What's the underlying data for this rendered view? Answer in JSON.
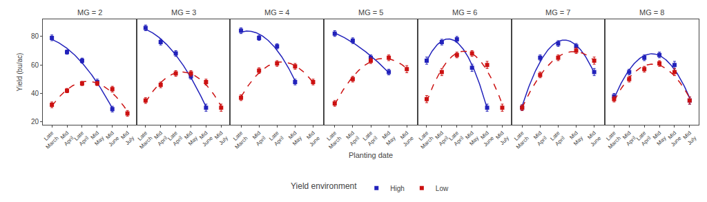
{
  "chart_data": [
    {
      "type": "scatter",
      "title": "MG = 2",
      "ylabel": "Yield (bu/ac)",
      "legend_title": "Yield environment",
      "legend": "bottom",
      "categories": [
        "Late\nMarch",
        "Mid\nApril",
        "Late\nApril",
        "Mid\nMay",
        "Mid\nJune",
        "Mid\nJuly"
      ],
      "ylim": [
        18,
        92
      ],
      "yticks": [
        20,
        40,
        60,
        80
      ],
      "grid": false,
      "series": [
        {
          "name": "High",
          "color": "#2222bb",
          "marker": "square",
          "line_style": "solid",
          "values": [
            79,
            69,
            63,
            48,
            29,
            null
          ],
          "errors": [
            2.0,
            1.5,
            1.8,
            2.0,
            2.0,
            null
          ]
        },
        {
          "name": "Low",
          "color": "#cc1111",
          "marker": "square",
          "line_style": "dashed",
          "values": [
            32,
            42,
            47,
            47,
            43,
            26
          ],
          "errors": [
            2.0,
            1.5,
            1.5,
            1.5,
            2.0,
            2.0
          ]
        }
      ]
    },
    {
      "type": "scatter",
      "title": "MG = 3",
      "tick_labels": "x",
      "categories": [
        "Late\nMarch",
        "Mid\nApril",
        "Late\nApril",
        "Mid\nMay",
        "Mid\nJune",
        "Mid\nJuly"
      ],
      "ylim": [
        18,
        92
      ],
      "yticks": [
        20,
        40,
        60,
        80
      ],
      "grid": false,
      "series": [
        {
          "name": "High",
          "color": "#2222bb",
          "marker": "square",
          "line_style": "solid",
          "values": [
            86,
            76,
            68,
            52,
            30,
            null
          ],
          "errors": [
            2.0,
            2.0,
            2.0,
            2.0,
            2.5,
            null
          ]
        },
        {
          "name": "Low",
          "color": "#cc1111",
          "marker": "square",
          "line_style": "dashed",
          "values": [
            35,
            46,
            54,
            54,
            48,
            30
          ],
          "errors": [
            2.0,
            2.0,
            2.0,
            2.0,
            2.0,
            2.5
          ]
        }
      ]
    },
    {
      "type": "scatter",
      "title": "MG = 4",
      "tick_labels": "x",
      "categories": [
        "Late\nMarch",
        "Mid\nApril",
        "Late\nApril",
        "Mid\nMay",
        "Mid\nJune"
      ],
      "ylim": [
        18,
        92
      ],
      "yticks": [
        20,
        40,
        60,
        80
      ],
      "grid": false,
      "series": [
        {
          "name": "High",
          "color": "#2222bb",
          "marker": "square",
          "line_style": "solid",
          "values": [
            84,
            79,
            73,
            48,
            null
          ],
          "errors": [
            2.0,
            1.8,
            1.8,
            2.0,
            null
          ]
        },
        {
          "name": "Low",
          "color": "#cc1111",
          "marker": "square",
          "line_style": "dashed",
          "values": [
            37,
            56,
            61,
            59,
            48
          ],
          "errors": [
            2.0,
            2.0,
            2.0,
            2.0,
            2.0
          ]
        }
      ]
    },
    {
      "type": "scatter",
      "title": "MG = 5",
      "xlabel": "Planting date",
      "tick_labels": "x",
      "categories": [
        "Late\nMarch",
        "Mid\nApril",
        "Late\nApril",
        "Mid\nMay",
        "Mid\nJune"
      ],
      "ylim": [
        18,
        92
      ],
      "yticks": [
        20,
        40,
        60,
        80
      ],
      "grid": false,
      "series": [
        {
          "name": "High",
          "color": "#2222bb",
          "marker": "square",
          "line_style": "solid",
          "values": [
            82,
            77,
            65,
            55,
            null
          ],
          "errors": [
            2.0,
            2.0,
            2.0,
            2.0,
            null
          ]
        },
        {
          "name": "Low",
          "color": "#cc1111",
          "marker": "square",
          "line_style": "dashed",
          "values": [
            33,
            50,
            63,
            65,
            57
          ],
          "errors": [
            2.0,
            2.0,
            2.0,
            2.0,
            2.5
          ]
        }
      ]
    },
    {
      "type": "scatter",
      "title": "MG = 6",
      "tick_labels": "x",
      "categories": [
        "Late\nMarch",
        "Mid\nApril",
        "Late\nApril",
        "Mid\nMay",
        "Mid\nJune",
        "Mid\nJuly"
      ],
      "ylim": [
        18,
        92
      ],
      "yticks": [
        20,
        40,
        60,
        80
      ],
      "grid": false,
      "series": [
        {
          "name": "High",
          "color": "#2222bb",
          "marker": "square",
          "line_style": "solid",
          "values": [
            63,
            76,
            78,
            58,
            30,
            null
          ],
          "errors": [
            2.5,
            2.0,
            2.0,
            2.5,
            2.5,
            null
          ]
        },
        {
          "name": "Low",
          "color": "#cc1111",
          "marker": "square",
          "line_style": "dashed",
          "values": [
            36,
            55,
            67,
            68,
            60,
            30
          ],
          "errors": [
            2.5,
            2.5,
            2.0,
            2.0,
            2.5,
            2.5
          ]
        }
      ]
    },
    {
      "type": "scatter",
      "title": "MG = 7",
      "tick_labels": "x",
      "categories": [
        "Late\nMarch",
        "Mid\nApril",
        "Late\nApril",
        "Mid\nMay",
        "Mid\nJune"
      ],
      "ylim": [
        18,
        92
      ],
      "yticks": [
        20,
        40,
        60,
        80
      ],
      "grid": false,
      "series": [
        {
          "name": "High",
          "color": "#2222bb",
          "marker": "square",
          "line_style": "solid",
          "values": [
            30,
            65,
            75,
            73,
            55
          ],
          "errors": [
            2.0,
            2.0,
            2.0,
            2.0,
            2.5
          ]
        },
        {
          "name": "Low",
          "color": "#cc1111",
          "marker": "square",
          "line_style": "dashed",
          "values": [
            30,
            53,
            65,
            70,
            63
          ],
          "errors": [
            2.0,
            2.0,
            2.0,
            2.0,
            2.5
          ]
        }
      ]
    },
    {
      "type": "scatter",
      "title": "MG = 8",
      "tick_labels": "x",
      "categories": [
        "Late\nMarch",
        "Mid\nApril",
        "Late\nApril",
        "Mid\nMay",
        "Mid\nJune",
        "Mid\nJuly"
      ],
      "ylim": [
        18,
        92
      ],
      "yticks": [
        20,
        40,
        60,
        80
      ],
      "grid": false,
      "series": [
        {
          "name": "High",
          "color": "#2222bb",
          "marker": "square",
          "line_style": "solid",
          "values": [
            38,
            55,
            65,
            67,
            60,
            35
          ],
          "errors": [
            2.0,
            2.0,
            2.0,
            2.0,
            2.5,
            2.5
          ]
        },
        {
          "name": "Low",
          "color": "#cc1111",
          "marker": "square",
          "line_style": "dashed",
          "values": [
            36,
            50,
            57,
            61,
            55,
            35
          ],
          "errors": [
            2.0,
            2.0,
            2.0,
            2.0,
            2.5,
            2.5
          ]
        }
      ]
    }
  ]
}
